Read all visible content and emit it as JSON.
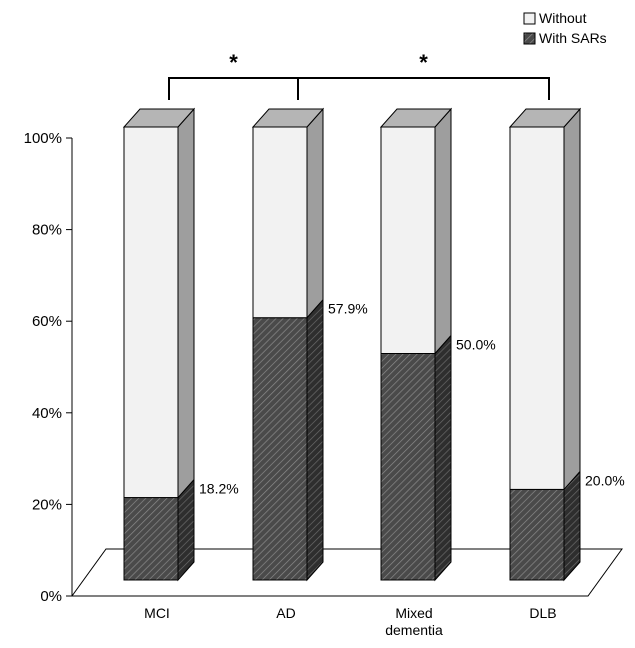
{
  "chart_data": {
    "type": "bar",
    "stacked": true,
    "style": "3d",
    "categories": [
      "MCI",
      "AD",
      "Mixed dementia",
      "DLB"
    ],
    "category_labels": [
      [
        "MCI"
      ],
      [
        "AD"
      ],
      [
        "Mixed",
        "dementia"
      ],
      [
        "DLB"
      ]
    ],
    "series": [
      {
        "name": "With SARs",
        "values": [
          18.2,
          57.9,
          50.0,
          20.0
        ],
        "color": "#555555",
        "pattern": "diagonal-hatch"
      },
      {
        "name": "Without",
        "values": [
          81.8,
          42.1,
          50.0,
          80.0
        ],
        "color": "#f2f2f2",
        "pattern": "none"
      }
    ],
    "data_labels": [
      "18.2%",
      "57.9%",
      "50.0%",
      "20.0%"
    ],
    "y_ticks": [
      "0%",
      "20%",
      "40%",
      "60%",
      "80%",
      "100%"
    ],
    "ylim": [
      0,
      100
    ],
    "title": "",
    "xlabel": "",
    "ylabel": "",
    "grid": false,
    "legend": {
      "placement": "top-right",
      "entries": [
        {
          "label": "Without",
          "swatch": "#f2f2f2"
        },
        {
          "label": "With SARs",
          "swatch": "#555555"
        }
      ]
    },
    "annotations": [
      {
        "label": "*",
        "from": "MCI",
        "to": "AD"
      },
      {
        "label": "*",
        "from": "AD",
        "to": "DLB"
      }
    ]
  }
}
